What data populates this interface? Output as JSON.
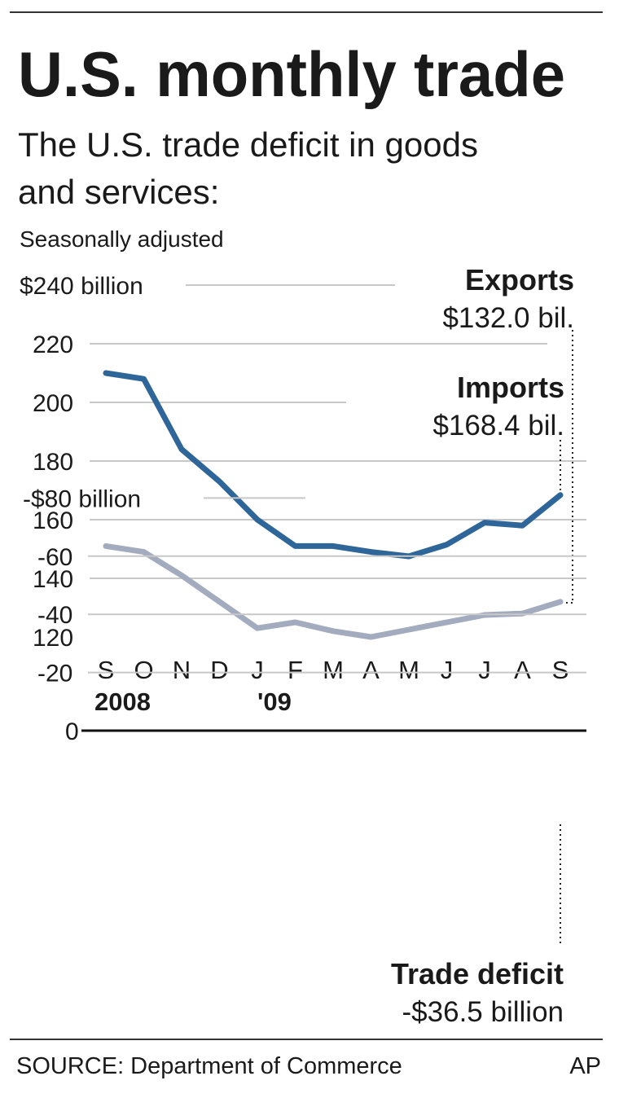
{
  "title": "U.S. monthly trade",
  "subtitle_line1": "The U.S. trade deficit in goods",
  "subtitle_line2": "and services:",
  "note": "Seasonally adjusted",
  "source": "SOURCE: Department of Commerce",
  "credit": "AP",
  "colors": {
    "imports": "#2e6699",
    "exports": "#a3abbf",
    "deficit_2008": "#2e6699",
    "deficit_2009": "#a3abbf"
  },
  "chart_data": [
    {
      "type": "line",
      "categories": [
        "S",
        "O",
        "N",
        "D",
        "J",
        "F",
        "M",
        "A",
        "M",
        "J",
        "J",
        "A",
        "S"
      ],
      "year_labels": [
        {
          "index": 0,
          "label": "2008"
        },
        {
          "index": 4,
          "label": "'09"
        }
      ],
      "ylim": [
        120,
        240
      ],
      "yticks": [
        "$240 billion",
        "220",
        "200",
        "180",
        "160",
        "140",
        "120"
      ],
      "ytick_values": [
        240,
        220,
        200,
        180,
        160,
        140,
        120
      ],
      "grid": true,
      "series": [
        {
          "name": "Imports",
          "annotation": "$168.4 bil.",
          "values": [
            210,
            208,
            184,
            173,
            160,
            151,
            151,
            149,
            147.5,
            151.5,
            159,
            158,
            168.4
          ]
        },
        {
          "name": "Exports",
          "annotation": "$132.0 bil.",
          "values": [
            151,
            149,
            141,
            132,
            123,
            125,
            122,
            120,
            122.5,
            125,
            127.5,
            128,
            132.0
          ]
        }
      ]
    },
    {
      "type": "bar",
      "categories": [
        "S",
        "O",
        "N",
        "D",
        "J",
        "F",
        "M",
        "A",
        "M",
        "J",
        "J",
        "A",
        "S"
      ],
      "ylim": [
        -80,
        0
      ],
      "yticks": [
        "0",
        "-20",
        "-40",
        "-60",
        "-$80 billion"
      ],
      "ytick_values": [
        0,
        -20,
        -40,
        -60,
        -80
      ],
      "grid": true,
      "series": [
        {
          "name": "Trade deficit",
          "annotation": "-$36.5 billion",
          "values": [
            -62.2,
            -61.5,
            -44.7,
            -42.9,
            -38.7,
            -27.9,
            -30,
            -30,
            -27.2,
            -29,
            -33,
            -32.1,
            -36.5
          ]
        }
      ]
    }
  ]
}
